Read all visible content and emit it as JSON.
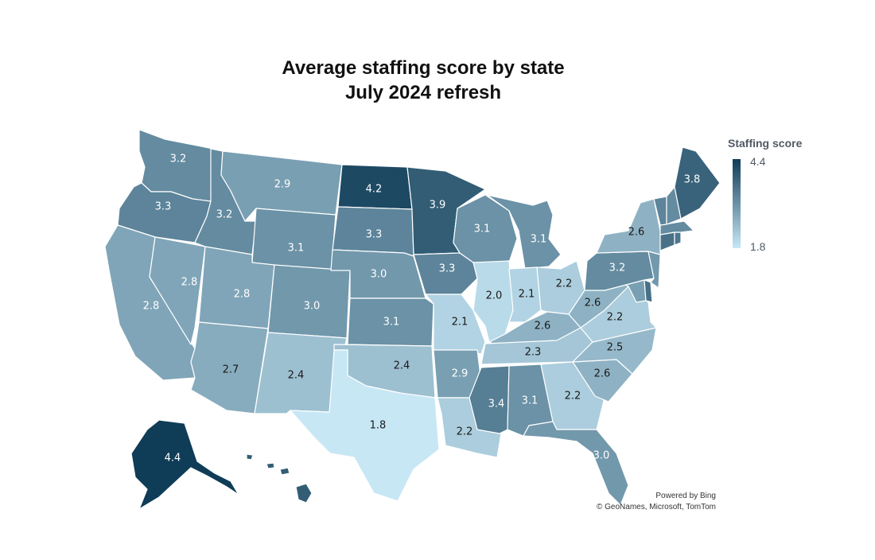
{
  "title_line1": "Average staffing score by state",
  "title_line2": "July 2024 refresh",
  "legend": {
    "title": "Staffing score",
    "max_label": "4.4",
    "min_label": "1.8",
    "min": 1.8,
    "max": 4.4,
    "color_low": "#c7e7f5",
    "color_high": "#0f3c57"
  },
  "credits": {
    "line1": "Powered by Bing",
    "line2": "© GeoNames, Microsoft, TomTom"
  },
  "states": [
    {
      "id": "WA",
      "value": 3.2,
      "label": "3.2"
    },
    {
      "id": "OR",
      "value": 3.3,
      "label": "3.3"
    },
    {
      "id": "CA",
      "value": 2.8,
      "label": "2.8"
    },
    {
      "id": "NV",
      "value": 2.8,
      "label": "2.8"
    },
    {
      "id": "ID",
      "value": 3.2,
      "label": "3.2"
    },
    {
      "id": "MT",
      "value": 2.9,
      "label": "2.9"
    },
    {
      "id": "WY",
      "value": 3.1,
      "label": "3.1"
    },
    {
      "id": "UT",
      "value": 2.8,
      "label": "2.8"
    },
    {
      "id": "AZ",
      "value": 2.7,
      "label": "2.7"
    },
    {
      "id": "CO",
      "value": 3.0,
      "label": "3.0"
    },
    {
      "id": "NM",
      "value": 2.4,
      "label": "2.4"
    },
    {
      "id": "ND",
      "value": 4.2,
      "label": "4.2"
    },
    {
      "id": "SD",
      "value": 3.3,
      "label": "3.3"
    },
    {
      "id": "NE",
      "value": 3.0,
      "label": "3.0"
    },
    {
      "id": "KS",
      "value": 3.1,
      "label": "3.1"
    },
    {
      "id": "OK",
      "value": 2.4,
      "label": "2.4"
    },
    {
      "id": "TX",
      "value": 1.8,
      "label": "1.8"
    },
    {
      "id": "MN",
      "value": 3.9,
      "label": "3.9"
    },
    {
      "id": "IA",
      "value": 3.3,
      "label": "3.3"
    },
    {
      "id": "MO",
      "value": 2.1,
      "label": "2.1"
    },
    {
      "id": "AR",
      "value": 2.9,
      "label": "2.9"
    },
    {
      "id": "LA",
      "value": 2.2,
      "label": "2.2"
    },
    {
      "id": "WI",
      "value": 3.1,
      "label": "3.1"
    },
    {
      "id": "IL",
      "value": 2.0,
      "label": "2.0"
    },
    {
      "id": "MI",
      "value": 3.1,
      "label": "3.1"
    },
    {
      "id": "IN",
      "value": 2.1,
      "label": "2.1"
    },
    {
      "id": "OH",
      "value": 2.2,
      "label": "2.2"
    },
    {
      "id": "KY",
      "value": 2.6,
      "label": "2.6"
    },
    {
      "id": "TN",
      "value": 2.3,
      "label": "2.3"
    },
    {
      "id": "MS",
      "value": 3.4,
      "label": "3.4"
    },
    {
      "id": "AL",
      "value": 3.1,
      "label": "3.1"
    },
    {
      "id": "GA",
      "value": 2.2,
      "label": "2.2"
    },
    {
      "id": "FL",
      "value": 3.0,
      "label": "3.0"
    },
    {
      "id": "SC",
      "value": 2.6,
      "label": "2.6"
    },
    {
      "id": "NC",
      "value": 2.5,
      "label": "2.5"
    },
    {
      "id": "VA",
      "value": 2.2,
      "label": "2.2"
    },
    {
      "id": "WV",
      "value": 2.6,
      "label": "2.6"
    },
    {
      "id": "PA",
      "value": 3.2,
      "label": "3.2"
    },
    {
      "id": "NY",
      "value": 2.6,
      "label": "2.6"
    },
    {
      "id": "ME",
      "value": 3.8,
      "label": "3.8"
    },
    {
      "id": "AK",
      "value": 4.4,
      "label": "4.4"
    },
    {
      "id": "VT",
      "value": 3.3
    },
    {
      "id": "NH",
      "value": 3.2
    },
    {
      "id": "MA",
      "value": 3.2
    },
    {
      "id": "CT",
      "value": 3.6
    },
    {
      "id": "RI",
      "value": 3.5
    },
    {
      "id": "NJ",
      "value": 3.0
    },
    {
      "id": "DE",
      "value": 3.6
    },
    {
      "id": "MD",
      "value": 2.9
    },
    {
      "id": "HI",
      "value": 3.9
    }
  ]
}
